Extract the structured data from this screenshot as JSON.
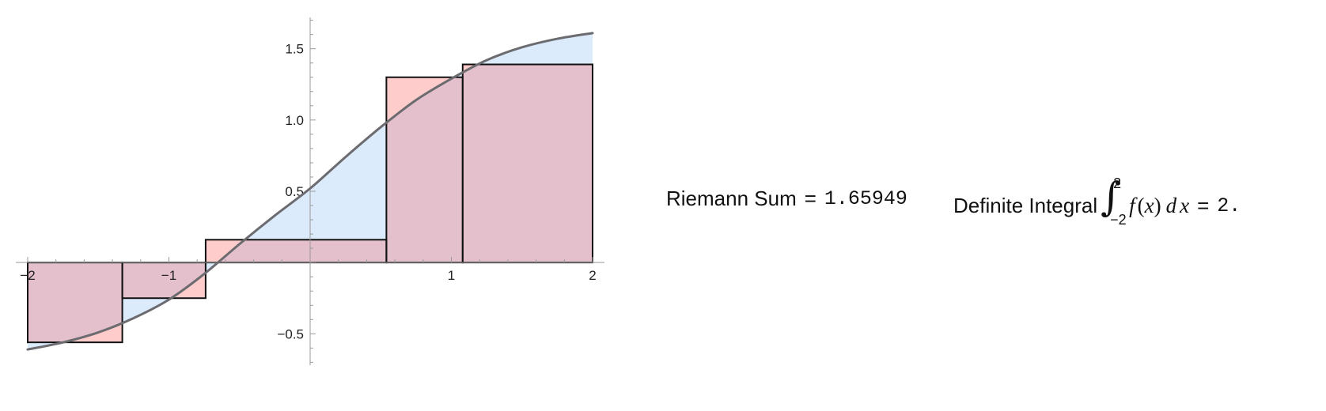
{
  "chart_data": {
    "type": "area",
    "xlim": [
      -2,
      2
    ],
    "ylim": [
      -0.72,
      1.72
    ],
    "x_ticks": [
      -2,
      -1,
      1,
      2
    ],
    "x_tick_labels": [
      "−2",
      "−1",
      "1",
      "2"
    ],
    "y_ticks": [
      -0.5,
      0.5,
      1.0,
      1.5
    ],
    "y_tick_labels": [
      "−0.5",
      "0.5",
      "1.0",
      "1.5"
    ],
    "grid": false,
    "curve": {
      "x": [
        -2.0,
        -1.75,
        -1.5,
        -1.25,
        -1.0,
        -0.75,
        -0.5,
        -0.25,
        0.0,
        0.25,
        0.5,
        0.75,
        1.0,
        1.25,
        1.5,
        1.75,
        2.0
      ],
      "y": [
        -0.61,
        -0.56,
        -0.49,
        -0.39,
        -0.26,
        -0.08,
        0.13,
        0.33,
        0.52,
        0.74,
        0.95,
        1.14,
        1.29,
        1.42,
        1.51,
        1.57,
        1.61
      ]
    },
    "riemann_rectangles": [
      {
        "x0": -2.0,
        "x1": -1.33,
        "height": -0.56
      },
      {
        "x0": -1.33,
        "x1": -0.74,
        "height": -0.25
      },
      {
        "x0": -0.74,
        "x1": 0.54,
        "height": 0.16
      },
      {
        "x0": 0.54,
        "x1": 1.08,
        "height": 1.3
      },
      {
        "x0": 1.08,
        "x1": 2.0,
        "height": 1.39
      }
    ],
    "colors": {
      "curve": "#6b6b70",
      "integral_fill": "#dcebfb",
      "rect_fill": "#ffcccc",
      "rect_overlap": "#e4c0cc",
      "rect_edge": "#111111"
    }
  },
  "info": {
    "riemann_label": "Riemann Sum",
    "riemann_eq": "=",
    "riemann_value": "1.65949",
    "integral_label": "Definite Integral",
    "integral_upper": "2",
    "integral_lower": "−2",
    "integrand_f": "f",
    "integrand_open": "(",
    "integrand_x": "x",
    "integrand_close": ")",
    "integrand_d": "d",
    "integrand_dx": "x",
    "integral_eq": "=",
    "integral_value": "2."
  }
}
